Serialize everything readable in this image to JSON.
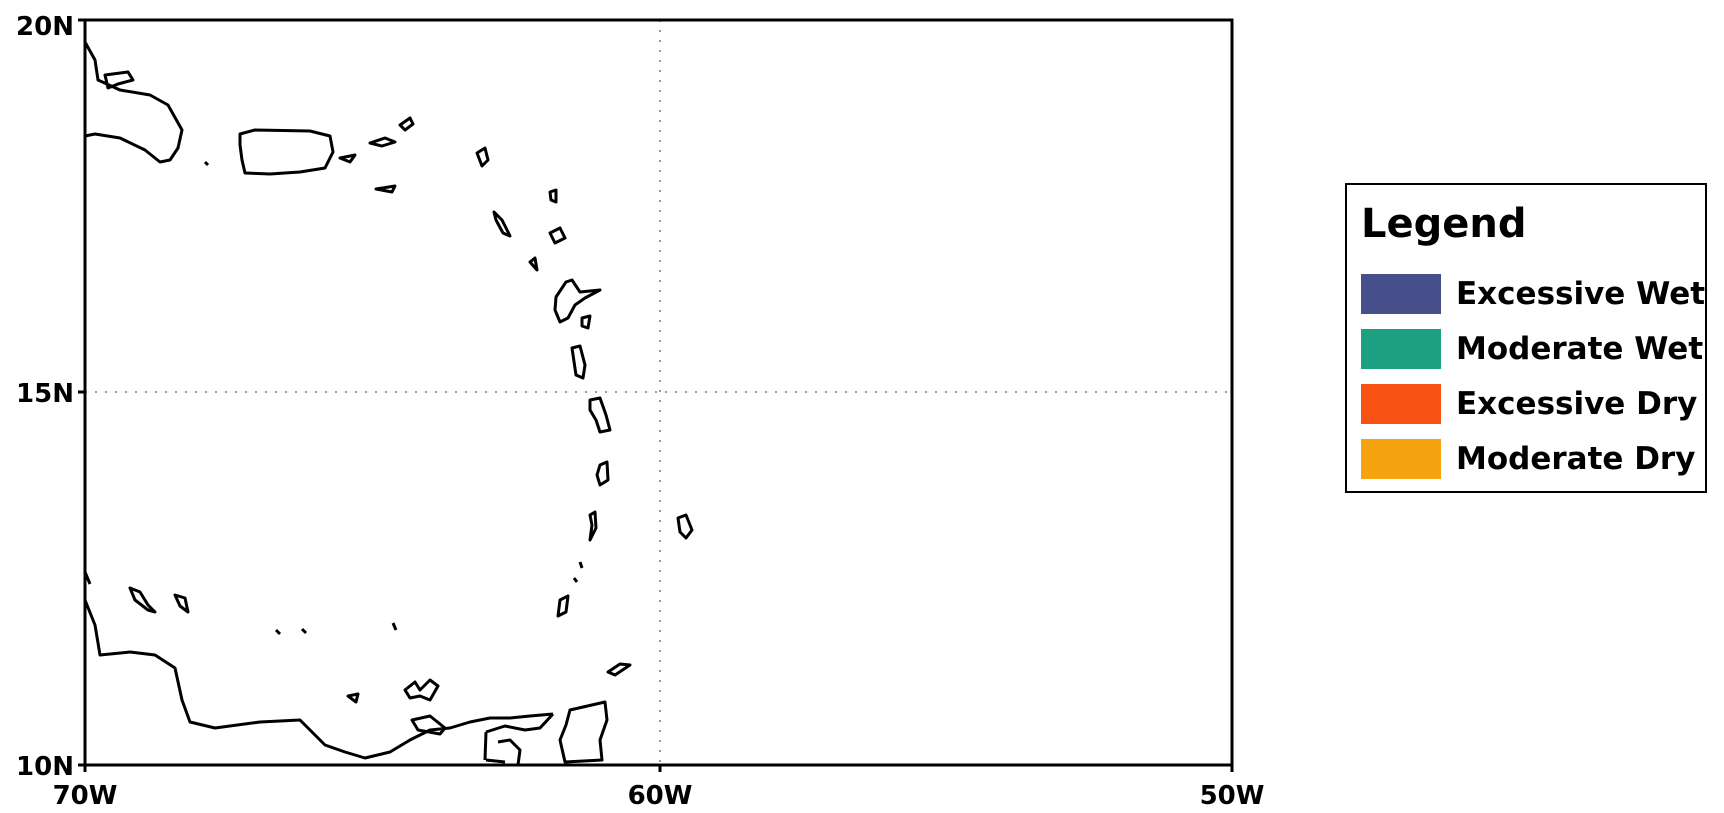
{
  "map": {
    "lat_labels": [
      "20N",
      "15N",
      "10N"
    ],
    "lon_labels": [
      "70W",
      "60W",
      "50W"
    ]
  },
  "legend": {
    "title": "Legend",
    "items": [
      {
        "label": "Excessive Wet",
        "color": "#464f8a"
      },
      {
        "label": "Moderate Wet",
        "color": "#1d9f82"
      },
      {
        "label": "Excessive Dry",
        "color": "#f65314"
      },
      {
        "label": "Moderate Dry",
        "color": "#f6a312"
      }
    ]
  }
}
